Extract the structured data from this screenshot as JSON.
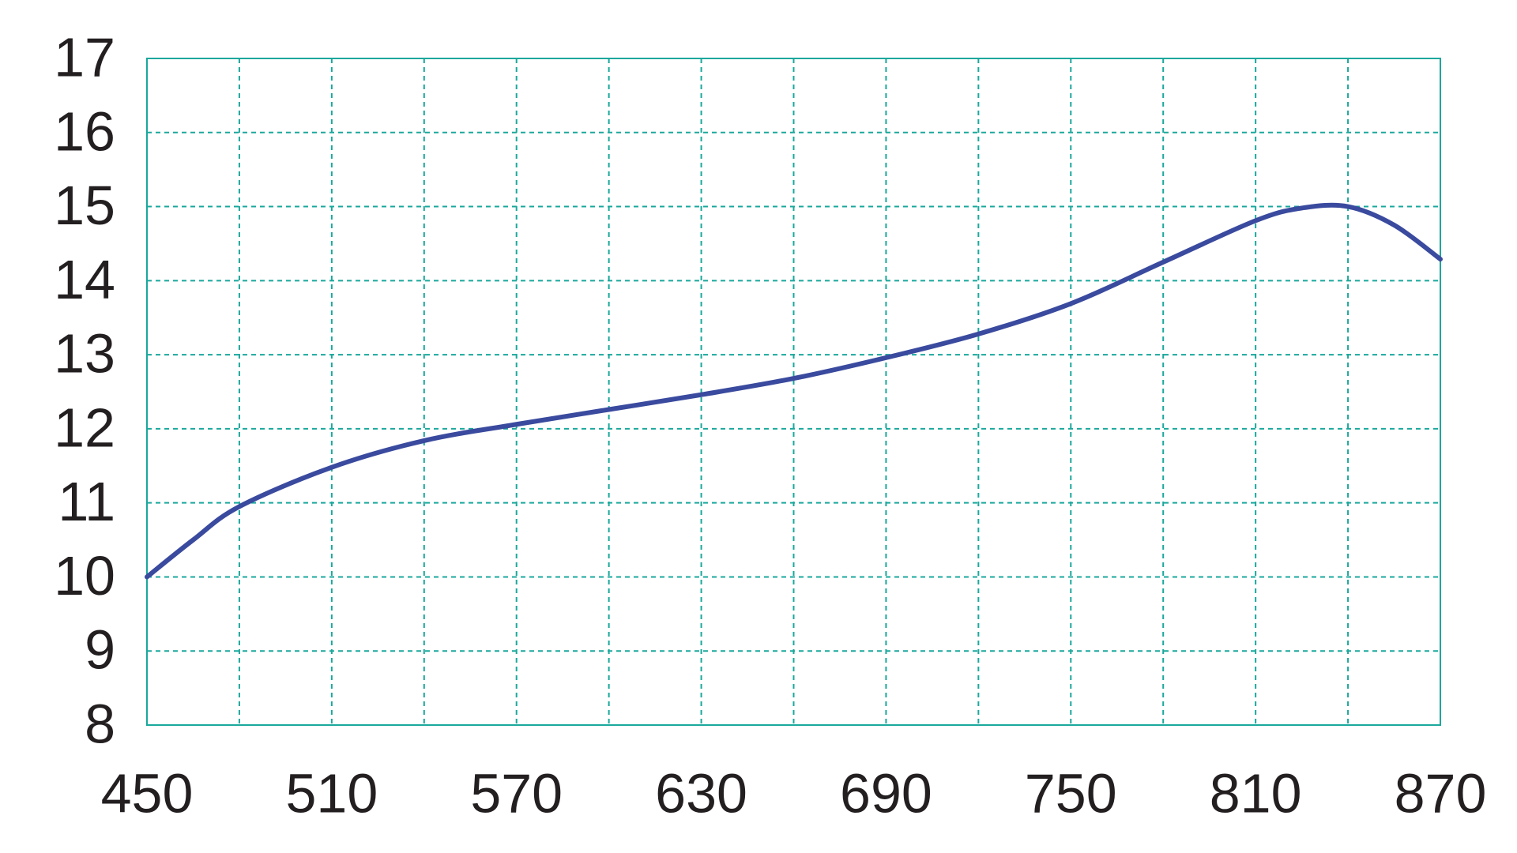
{
  "chart_data": {
    "type": "line",
    "x": [
      450,
      465,
      480,
      510,
      540,
      570,
      600,
      630,
      660,
      690,
      720,
      750,
      780,
      810,
      825,
      840,
      855,
      870
    ],
    "series": [
      {
        "color": "#3a4a9e",
        "values": [
          10.0,
          10.5,
          10.95,
          11.48,
          11.84,
          12.06,
          12.26,
          12.46,
          12.68,
          12.96,
          13.28,
          13.69,
          14.25,
          14.81,
          14.98,
          15.0,
          14.75,
          14.29
        ]
      }
    ],
    "xlim": [
      450,
      870
    ],
    "xticks": [
      450,
      510,
      570,
      630,
      690,
      750,
      810,
      870
    ],
    "xgrid": [
      450,
      480,
      510,
      540,
      570,
      600,
      630,
      660,
      690,
      720,
      750,
      780,
      810,
      840,
      870
    ],
    "ylim": [
      8,
      17
    ],
    "yticks": [
      8,
      9,
      10,
      11,
      12,
      13,
      14,
      15,
      16,
      17
    ],
    "grid": true,
    "grid_color": "#1aa89c",
    "frame_color": "#1aa89c"
  }
}
